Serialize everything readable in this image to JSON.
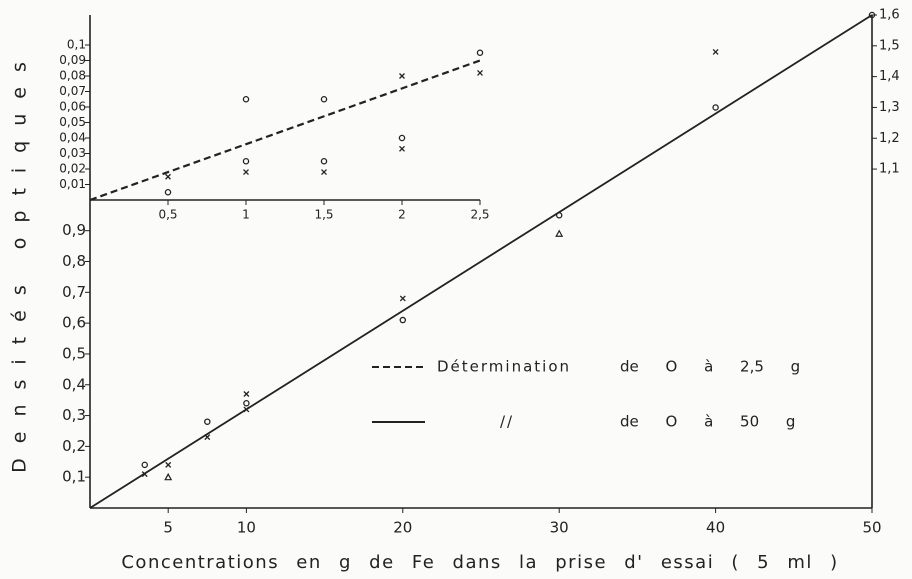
{
  "chart_data": [
    {
      "type": "scatter",
      "y_label": "Densités optiques",
      "x_label": "Concentrations en  g de Fe dans la prise d' essai ( 5 ml )",
      "xlim": [
        0,
        50
      ],
      "ylim": [
        0,
        1.6
      ],
      "y2lim": [
        0,
        1.6
      ],
      "xticks": [
        5,
        10,
        20,
        30,
        40,
        50
      ],
      "yticks": [
        {
          "value": 0.1,
          "label": "0,1"
        },
        {
          "value": 0.2,
          "label": "0,2"
        },
        {
          "value": 0.3,
          "label": "0,3"
        },
        {
          "value": 0.4,
          "label": "0,4"
        },
        {
          "value": 0.5,
          "label": "0,5"
        },
        {
          "value": 0.6,
          "label": "0,6"
        },
        {
          "value": 0.7,
          "label": "0,7"
        },
        {
          "value": 0.8,
          "label": "0,8"
        },
        {
          "value": 0.9,
          "label": "0,9"
        }
      ],
      "y2ticks": [
        {
          "value": 1.1,
          "label": "1,1"
        },
        {
          "value": 1.2,
          "label": "1,2"
        },
        {
          "value": 1.3,
          "label": "1,3"
        },
        {
          "value": 1.4,
          "label": "1,4"
        },
        {
          "value": 1.5,
          "label": "1,5"
        },
        {
          "value": 1.6,
          "label": "1,6"
        }
      ],
      "fit": {
        "x": [
          0,
          50
        ],
        "values": [
          0,
          1.6
        ],
        "style": "solid"
      },
      "series": [
        {
          "marker": "o",
          "x": [
            3.5,
            7.5,
            10,
            20,
            30,
            40,
            50
          ],
          "values": [
            0.14,
            0.28,
            0.34,
            0.61,
            0.95,
            1.3,
            1.6
          ]
        },
        {
          "marker": "x",
          "x": [
            3.5,
            5,
            7.5,
            10,
            10,
            20,
            40
          ],
          "values": [
            0.11,
            0.14,
            0.23,
            0.37,
            0.32,
            0.68,
            1.48
          ]
        },
        {
          "marker": "triangle",
          "x": [
            5,
            30
          ],
          "values": [
            0.1,
            0.89
          ]
        }
      ],
      "legend": [
        {
          "label": "Détermination",
          "detail": "de O à 2,5 g",
          "style": "dashed"
        },
        {
          "label": "//",
          "detail": "de O à 50 g",
          "style": "solid"
        }
      ]
    },
    {
      "type": "scatter",
      "xlim": [
        0,
        2.5
      ],
      "ylim": [
        0,
        0.1
      ],
      "xticks": [
        {
          "value": 0.5,
          "label": "0,5"
        },
        1,
        {
          "value": 1.5,
          "label": "1,5"
        },
        2,
        {
          "value": 2.5,
          "label": "2,5"
        }
      ],
      "yticks": [
        {
          "value": 0.01,
          "label": "0,01"
        },
        {
          "value": 0.02,
          "label": "0,02"
        },
        {
          "value": 0.03,
          "label": "0,03"
        },
        {
          "value": 0.04,
          "label": "0,04"
        },
        {
          "value": 0.05,
          "label": "0,05"
        },
        {
          "value": 0.06,
          "label": "0,06"
        },
        {
          "value": 0.07,
          "label": "0,07"
        },
        {
          "value": 0.08,
          "label": "0,08"
        },
        {
          "value": 0.09,
          "label": "0,09"
        },
        {
          "value": 0.1,
          "label": "0,1"
        }
      ],
      "fit": {
        "x": [
          0,
          2.5
        ],
        "values": [
          0,
          0.09
        ],
        "style": "dashed"
      },
      "series": [
        {
          "marker": "o",
          "x": [
            0.5,
            1,
            1,
            1.5,
            1.5,
            2,
            2.5
          ],
          "values": [
            0.005,
            0.065,
            0.025,
            0.065,
            0.025,
            0.04,
            0.095
          ]
        },
        {
          "marker": "x",
          "x": [
            0.5,
            1,
            1.5,
            2,
            2,
            2.5
          ],
          "values": [
            0.015,
            0.018,
            0.018,
            0.033,
            0.08,
            0.082
          ]
        }
      ]
    }
  ]
}
